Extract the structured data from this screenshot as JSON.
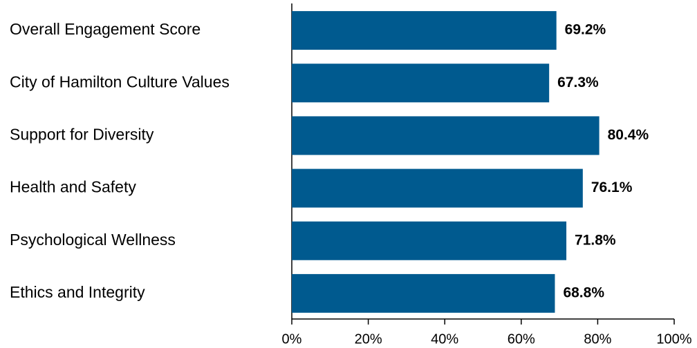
{
  "chart_data": {
    "type": "hbar",
    "categories": [
      "Overall Engagement Score",
      "City of Hamilton Culture Values",
      "Support for Diversity",
      "Health and Safety",
      "Psychological Wellness",
      "Ethics and Integrity"
    ],
    "values": [
      69.2,
      67.3,
      80.4,
      76.1,
      71.8,
      68.8
    ],
    "value_labels": [
      "69.2%",
      "67.3%",
      "80.4%",
      "76.1%",
      "71.8%",
      "68.8%"
    ],
    "color": "#005a8f",
    "xlim": [
      0,
      100
    ],
    "xticks": [
      {
        "value": 0,
        "label": "0%"
      },
      {
        "value": 20,
        "label": "20%"
      },
      {
        "value": 40,
        "label": "40%"
      },
      {
        "value": 60,
        "label": "60%"
      },
      {
        "value": 80,
        "label": "80%"
      },
      {
        "value": 100,
        "label": "100%"
      }
    ]
  }
}
